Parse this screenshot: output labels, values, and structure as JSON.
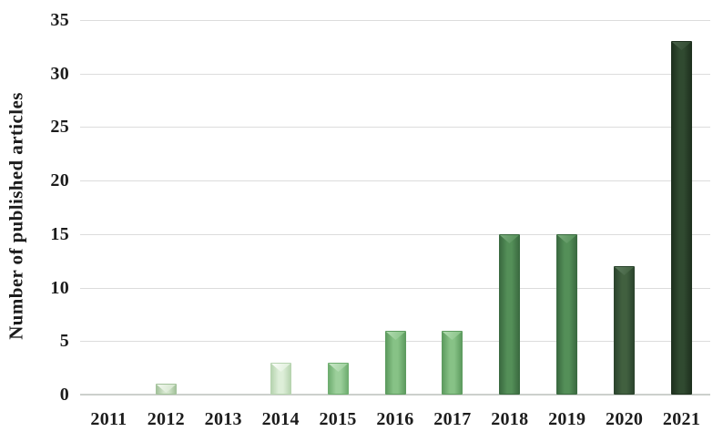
{
  "chart_data": {
    "type": "bar",
    "title": "",
    "xlabel": "",
    "ylabel": "Number of published articles",
    "categories": [
      "2011",
      "2012",
      "2013",
      "2014",
      "2015",
      "2016",
      "2017",
      "2018",
      "2019",
      "2020",
      "2021"
    ],
    "values": [
      0,
      1,
      0,
      3,
      3,
      6,
      6,
      15,
      15,
      12,
      33
    ],
    "ylim": [
      0,
      35
    ],
    "yticks": [
      0,
      5,
      10,
      15,
      20,
      25,
      30,
      35
    ],
    "grid": "horizontal",
    "legend": "none",
    "bar_style": "beveled-3d",
    "background_color": "#ffffff",
    "gridline_color": "#dcdcdc",
    "axis_line_color": "#ccd0cc",
    "text_color": "#1c1c1c",
    "bar_colors": [
      {
        "edge": "#a3c29b",
        "body": "#d3e5cc",
        "cap": "#f2f8ef"
      },
      {
        "edge": "#a3c29b",
        "body": "#d3e5cc",
        "cap": "#f2f8ef"
      },
      {
        "edge": "#b7d4b0",
        "body": "#ddeed8",
        "cap": "#fbfdfa"
      },
      {
        "edge": "#b7d4b0",
        "body": "#ddeed8",
        "cap": "#fbfdfa"
      },
      {
        "edge": "#6fae70",
        "body": "#9ccf9b",
        "cap": "#c9e7c8"
      },
      {
        "edge": "#5e9c60",
        "body": "#87c286",
        "cap": "#b2dcb1"
      },
      {
        "edge": "#5e9c60",
        "body": "#87c286",
        "cap": "#b2dcb1"
      },
      {
        "edge": "#3b6b41",
        "body": "#548f58",
        "cap": "#79ab7c"
      },
      {
        "edge": "#3b6b41",
        "body": "#548f58",
        "cap": "#79ab7c"
      },
      {
        "edge": "#2c452e",
        "body": "#41603f",
        "cap": "#5d7b5e"
      },
      {
        "edge": "#1f311f",
        "body": "#304a30",
        "cap": "#4a624a"
      }
    ]
  }
}
